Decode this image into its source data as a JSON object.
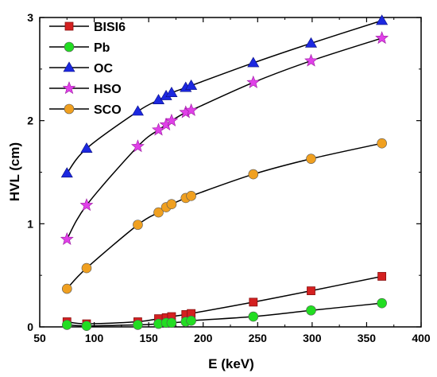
{
  "chart_data": {
    "type": "line",
    "title": "",
    "xlabel": "E (keV)",
    "ylabel": "HVL (cm)",
    "xlim": [
      50,
      400
    ],
    "ylim": [
      0,
      3
    ],
    "x_ticks": [
      "50",
      "100",
      "150",
      "200",
      "250",
      "300",
      "350",
      "400"
    ],
    "y_ticks": [
      "0",
      "1",
      "2",
      "3"
    ],
    "grid": false,
    "legend_position": "top-left",
    "series": [
      {
        "name": "BISI6",
        "marker": "square",
        "color": "#d42020",
        "points": [
          [
            75,
            0.05
          ],
          [
            93,
            0.03
          ],
          [
            140,
            0.05
          ],
          [
            159,
            0.08
          ],
          [
            166,
            0.09
          ],
          [
            171,
            0.1
          ],
          [
            184,
            0.12
          ],
          [
            189,
            0.13
          ],
          [
            246,
            0.24
          ],
          [
            299,
            0.35
          ],
          [
            364,
            0.49
          ]
        ]
      },
      {
        "name": "Pb",
        "marker": "circle",
        "color": "#22dd22",
        "points": [
          [
            75,
            0.02
          ],
          [
            93,
            0.01
          ],
          [
            140,
            0.02
          ],
          [
            159,
            0.03
          ],
          [
            166,
            0.04
          ],
          [
            171,
            0.04
          ],
          [
            184,
            0.05
          ],
          [
            189,
            0.06
          ],
          [
            246,
            0.1
          ],
          [
            299,
            0.16
          ],
          [
            364,
            0.23
          ]
        ]
      },
      {
        "name": "OC",
        "marker": "triangle",
        "color": "#1c28e0",
        "points": [
          [
            75,
            1.49
          ],
          [
            93,
            1.73
          ],
          [
            140,
            2.09
          ],
          [
            159,
            2.2
          ],
          [
            166,
            2.24
          ],
          [
            171,
            2.27
          ],
          [
            184,
            2.32
          ],
          [
            189,
            2.34
          ],
          [
            246,
            2.56
          ],
          [
            299,
            2.75
          ],
          [
            364,
            2.97
          ]
        ]
      },
      {
        "name": "HSO",
        "marker": "star",
        "color": "#e040e8",
        "points": [
          [
            75,
            0.85
          ],
          [
            93,
            1.18
          ],
          [
            140,
            1.75
          ],
          [
            159,
            1.91
          ],
          [
            166,
            1.96
          ],
          [
            171,
            2.0
          ],
          [
            184,
            2.08
          ],
          [
            189,
            2.1
          ],
          [
            246,
            2.37
          ],
          [
            299,
            2.58
          ],
          [
            364,
            2.8
          ]
        ]
      },
      {
        "name": "SCO",
        "marker": "circle",
        "color": "#f0a020",
        "points": [
          [
            75,
            0.37
          ],
          [
            93,
            0.57
          ],
          [
            140,
            0.99
          ],
          [
            159,
            1.11
          ],
          [
            166,
            1.16
          ],
          [
            171,
            1.19
          ],
          [
            184,
            1.25
          ],
          [
            189,
            1.27
          ],
          [
            246,
            1.48
          ],
          [
            299,
            1.63
          ],
          [
            364,
            1.78
          ]
        ]
      }
    ]
  }
}
